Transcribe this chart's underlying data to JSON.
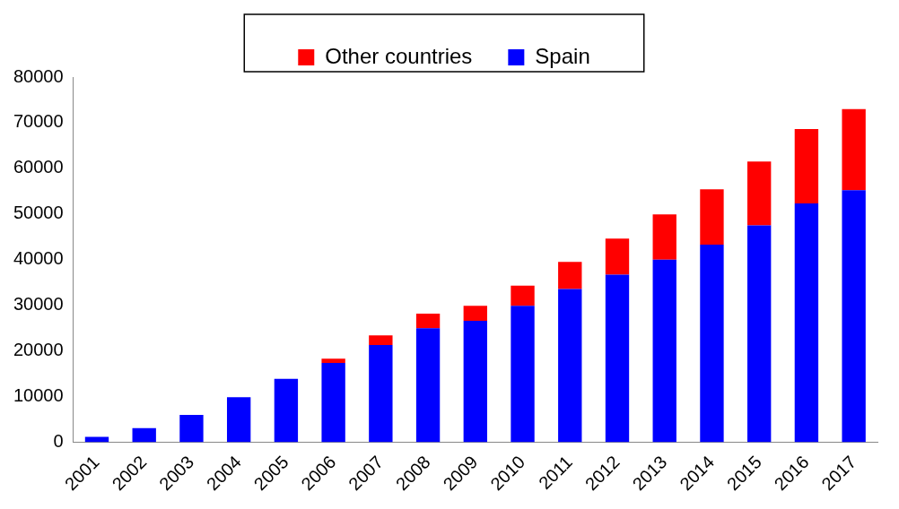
{
  "chart_data": {
    "type": "bar",
    "stacked": true,
    "categories": [
      "2001",
      "2002",
      "2003",
      "2004",
      "2005",
      "2006",
      "2007",
      "2008",
      "2009",
      "2010",
      "2011",
      "2012",
      "2013",
      "2014",
      "2015",
      "2016",
      "2017"
    ],
    "series": [
      {
        "name": "Spain",
        "color": "#0000ff",
        "values": [
          1200,
          3100,
          6000,
          9900,
          13900,
          17400,
          21300,
          25000,
          26600,
          29900,
          33600,
          36700,
          40000,
          43300,
          47500,
          52300,
          55200
        ]
      },
      {
        "name": "Other countries",
        "color": "#ff0000",
        "values": [
          0,
          0,
          0,
          0,
          0,
          900,
          2100,
          3200,
          3300,
          4400,
          5900,
          7900,
          9900,
          12100,
          14000,
          16300,
          17800
        ]
      }
    ],
    "ylim": [
      0,
      80000
    ],
    "yticks": [
      0,
      10000,
      20000,
      30000,
      40000,
      50000,
      60000,
      70000,
      80000
    ],
    "grid": false,
    "legend": "top"
  }
}
